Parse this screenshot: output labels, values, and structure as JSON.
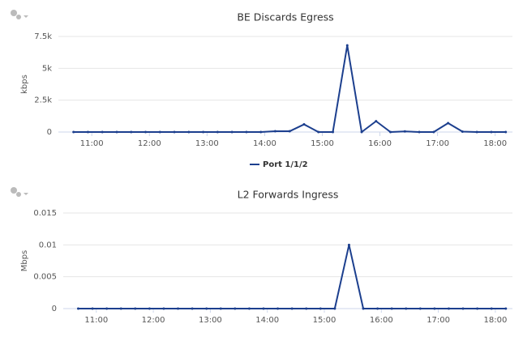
{
  "chart_data": [
    {
      "type": "line",
      "title": "BE Discards Egress",
      "y_label": "kbps",
      "x": [
        10.683,
        10.933,
        11.183,
        11.433,
        11.683,
        11.933,
        12.183,
        12.433,
        12.683,
        12.933,
        13.183,
        13.433,
        13.683,
        13.933,
        14.183,
        14.433,
        14.683,
        14.933,
        15.183,
        15.433,
        15.683,
        15.933,
        16.183,
        16.433,
        16.683,
        16.933,
        17.183,
        17.433,
        17.683,
        17.933,
        18.183
      ],
      "series": [
        {
          "name": "Port 1/1/2",
          "color": "#1c3f8e",
          "values": [
            0,
            0,
            0,
            0,
            0,
            0,
            0,
            0,
            0,
            0,
            0,
            0,
            0,
            0,
            60,
            60,
            600,
            0,
            0,
            6800,
            0,
            850,
            0,
            50,
            0,
            0,
            700,
            30,
            0,
            0,
            0
          ]
        }
      ],
      "xlim": [
        10.42,
        18.3
      ],
      "xticks": [
        {
          "value": 11,
          "label": "11:00"
        },
        {
          "value": 12,
          "label": "12:00"
        },
        {
          "value": 13,
          "label": "13:00"
        },
        {
          "value": 14,
          "label": "14:00"
        },
        {
          "value": 15,
          "label": "15:00"
        },
        {
          "value": 16,
          "label": "16:00"
        },
        {
          "value": 17,
          "label": "17:00"
        },
        {
          "value": 18,
          "label": "18:00"
        }
      ],
      "ylim": [
        0,
        7500
      ],
      "yticks": [
        0,
        {
          "value": 2500,
          "label": "2.5k"
        },
        {
          "value": 5000,
          "label": "5k"
        },
        {
          "value": 7500,
          "label": "7.5k"
        }
      ],
      "grid": true,
      "legend": "bottom"
    },
    {
      "type": "line",
      "title": "L2 Forwards Ingress",
      "y_label": "Mbps",
      "x": [
        10.683,
        10.933,
        11.183,
        11.433,
        11.683,
        11.933,
        12.183,
        12.433,
        12.683,
        12.933,
        13.183,
        13.433,
        13.683,
        13.933,
        14.183,
        14.433,
        14.683,
        14.933,
        15.183,
        15.433,
        15.683,
        15.933,
        16.183,
        16.433,
        16.683,
        16.933,
        17.183,
        17.433,
        17.683,
        17.933,
        18.183
      ],
      "series": [
        {
          "color": "#1c3f8e",
          "values": [
            0,
            0,
            0,
            0,
            0,
            0,
            0,
            0,
            0,
            0,
            0,
            0,
            0,
            0,
            0,
            0,
            0,
            0,
            0,
            0.01,
            0,
            0,
            0,
            0,
            0,
            0,
            0,
            0,
            0,
            0,
            0
          ]
        }
      ],
      "xlim": [
        10.42,
        18.3
      ],
      "xticks": [
        {
          "value": 11,
          "label": "11:00"
        },
        {
          "value": 12,
          "label": "12:00"
        },
        {
          "value": 13,
          "label": "13:00"
        },
        {
          "value": 14,
          "label": "14:00"
        },
        {
          "value": 15,
          "label": "15:00"
        },
        {
          "value": 16,
          "label": "16:00"
        },
        {
          "value": 17,
          "label": "17:00"
        },
        {
          "value": 18,
          "label": "18:00"
        }
      ],
      "ylim": [
        0,
        0.015
      ],
      "yticks": [
        0,
        0.005,
        0.01,
        0.015
      ],
      "grid": true
    }
  ]
}
